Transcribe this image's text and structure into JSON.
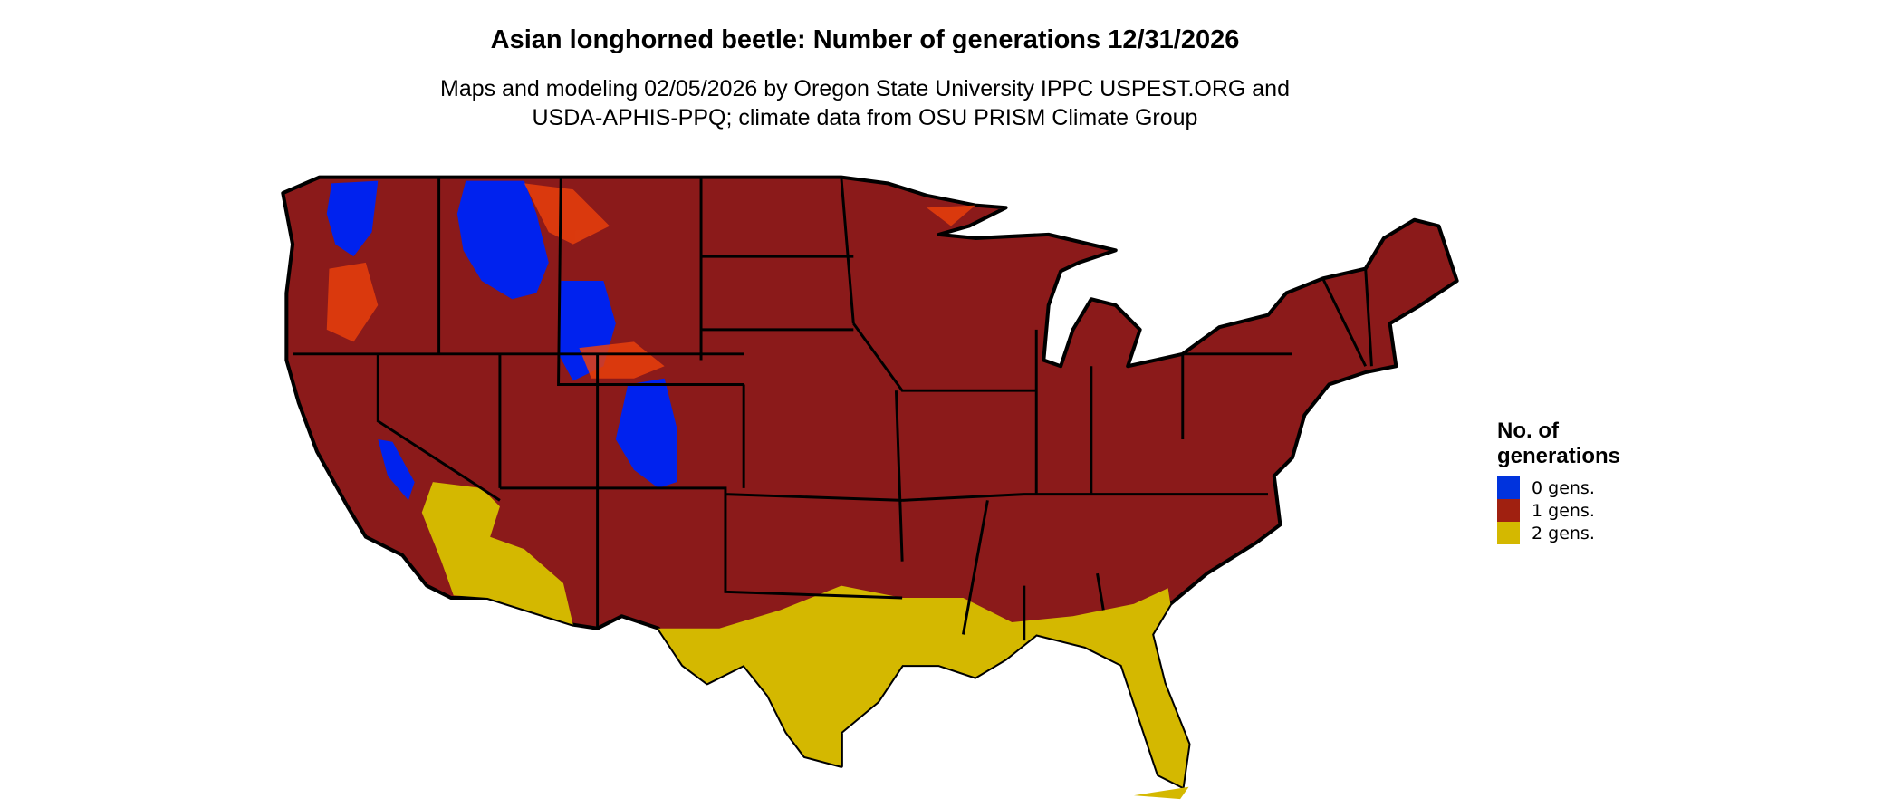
{
  "title": "Asian longhorned beetle: Number of generations 12/31/2026",
  "subtitle_lines": [
    "Maps and modeling 02/05/2026 by Oregon State University IPPC USPEST.ORG and",
    "USDA-APHIS-PPQ; climate data from OSU PRISM Climate Group"
  ],
  "chart_data": {
    "type": "heatmap",
    "subtype": "choropleth map of contiguous United States",
    "title": "Asian longhorned beetle: Number of generations 12/31/2026",
    "legend": {
      "title": "No. of generations",
      "title_lines": [
        "No. of",
        "generations"
      ],
      "placement": "right",
      "entries": [
        {
          "label": "0 gens.",
          "value": 0,
          "color": "#0033dd"
        },
        {
          "label": "1 gens.",
          "value": 1,
          "color": "#a02010"
        },
        {
          "label": "2 gens.",
          "value": 2,
          "color": "#d4b800"
        }
      ]
    },
    "regions": [
      {
        "area": "most of the contiguous US",
        "generations": 1
      },
      {
        "area": "northern Rockies, Wyoming, Colorado high elevations, Cascades, Sierra Nevada",
        "generations": 0
      },
      {
        "area": "southwest deserts (AZ/CA), Gulf coast, Texas south, Florida, coastal Georgia/South Carolina",
        "generations": 2
      }
    ]
  }
}
